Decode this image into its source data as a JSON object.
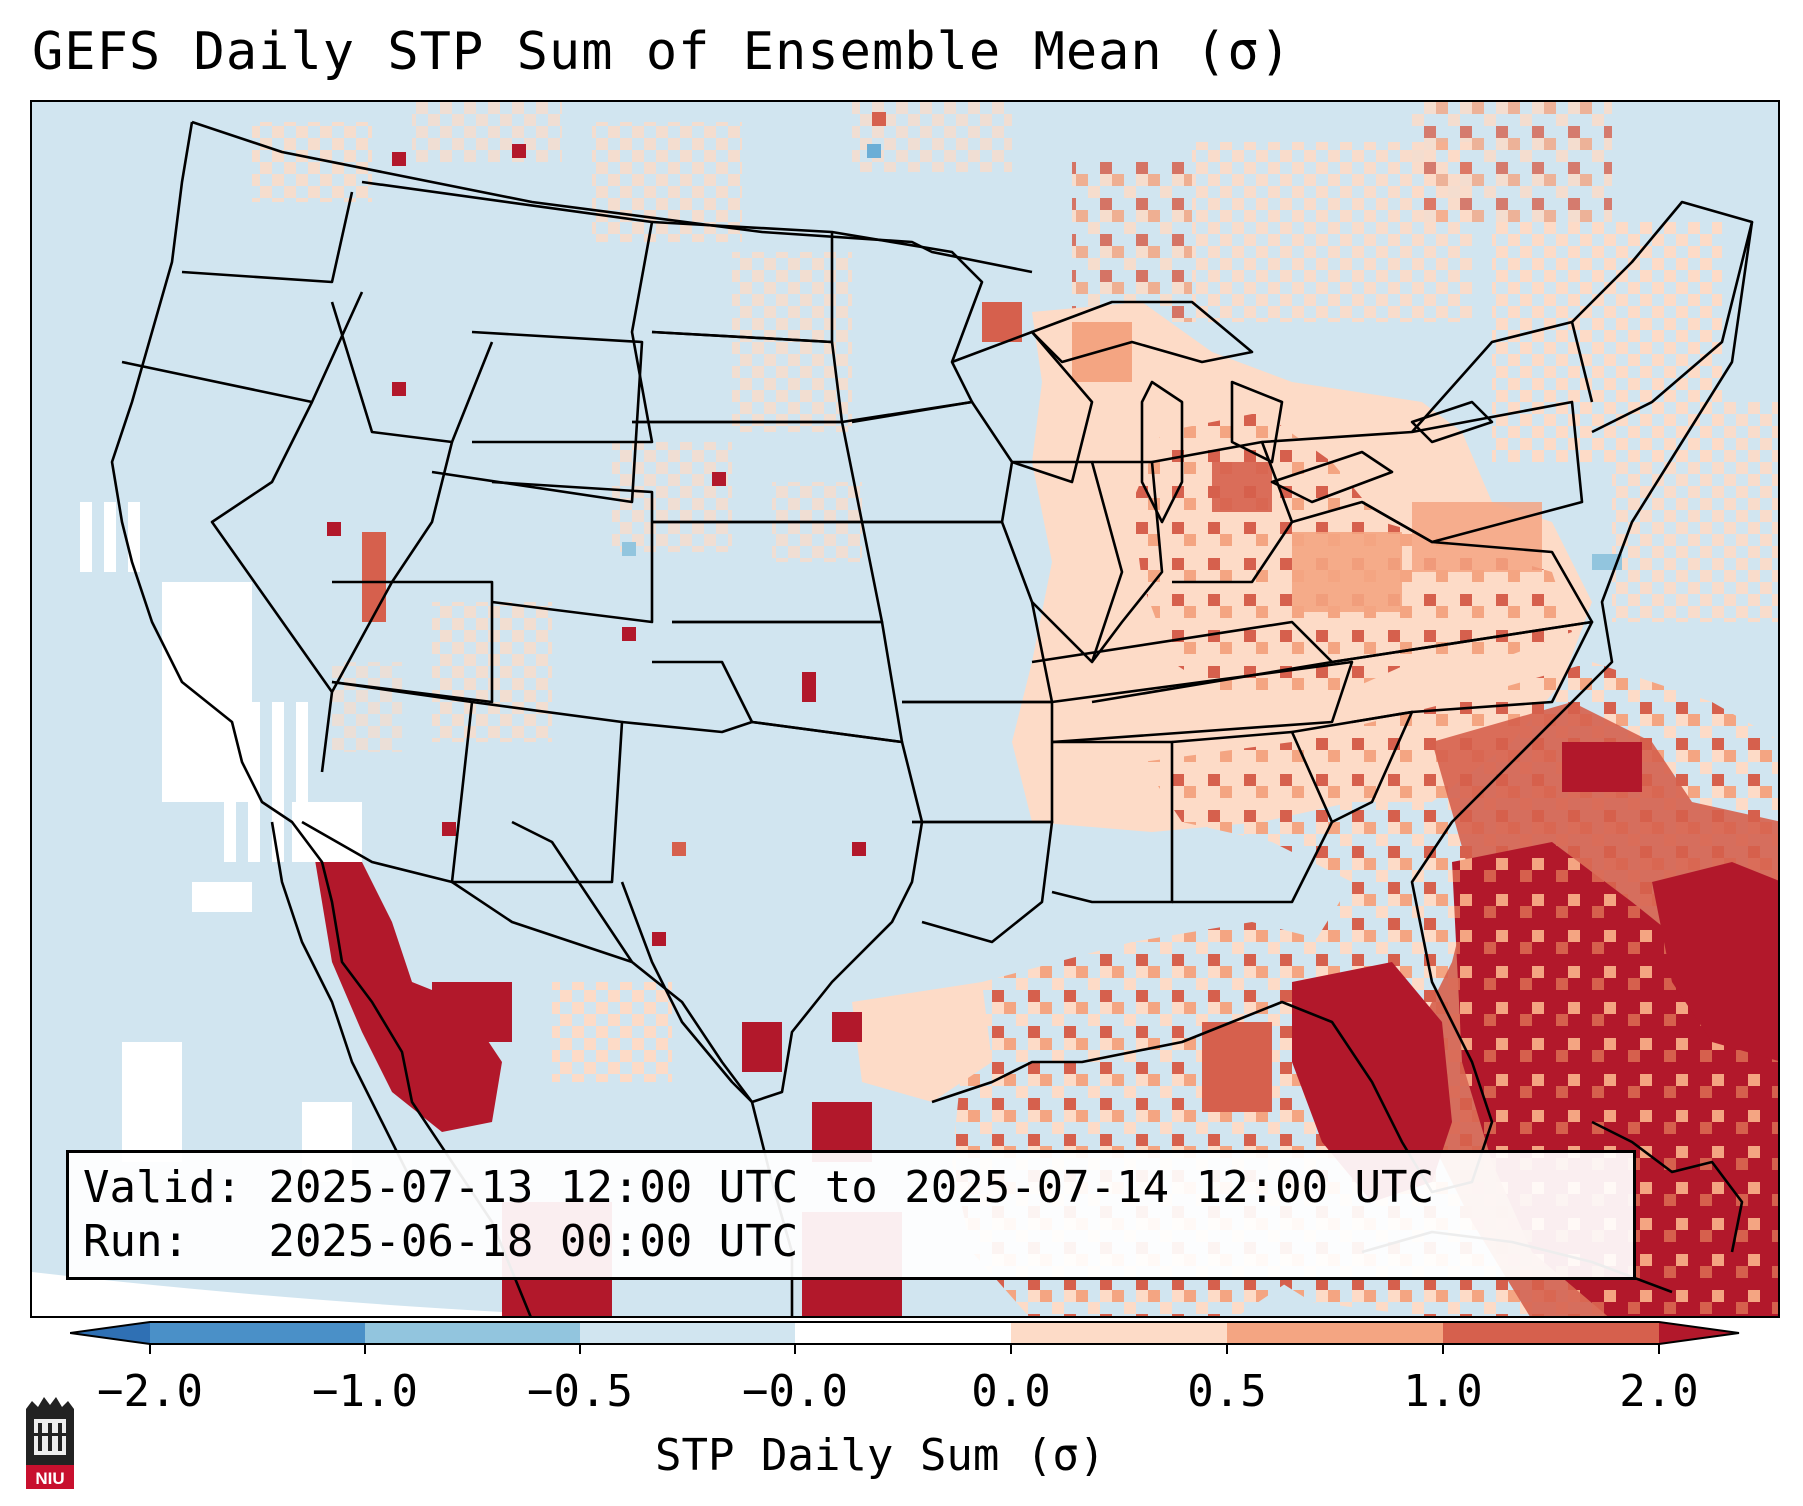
{
  "title": "GEFS Daily STP Sum of Ensemble Mean (σ)",
  "info": {
    "valid_label": "Valid:",
    "valid_value": "2025-07-13 12:00 UTC to 2025-07-14 12:00 UTC",
    "run_label": "Run:",
    "run_value": "2025-06-18 00:00 UTC"
  },
  "colorbar": {
    "label": "STP Daily Sum (σ)",
    "ticks": [
      "−2.0",
      "−1.0",
      "−0.5",
      "−0.0",
      "0.0",
      "0.5",
      "1.0",
      "2.0"
    ],
    "bins": [
      {
        "range": "< -2.0",
        "color": "#2f70b4"
      },
      {
        "range": "-2.0 to -1.0",
        "color": "#4a90c8"
      },
      {
        "range": "-1.0 to -0.5",
        "color": "#92c5de"
      },
      {
        "range": "-0.5 to -0.0",
        "color": "#d1e5f0"
      },
      {
        "range": "-0.0 to 0.0",
        "color": "#ffffff"
      },
      {
        "range": "0.0 to 0.5",
        "color": "#fddbc7"
      },
      {
        "range": "0.5 to 1.0",
        "color": "#f4a582"
      },
      {
        "range": "1.0 to 2.0",
        "color": "#d6604d"
      },
      {
        "range": "> 2.0",
        "color": "#b2182b"
      }
    ]
  },
  "map": {
    "background_color": "#d1e5f0",
    "region": "Contiguous United States, southern Canada, northern Mexico, Gulf of Mexico and western Atlantic",
    "features": [
      {
        "area": "Southeast US coast, Florida and western Atlantic",
        "level": "> 2.0"
      },
      {
        "area": "Great Lakes, Ohio Valley and Mid-Atlantic",
        "level": "0.0 to 1.0"
      },
      {
        "area": "Gulf Coast and northern Gulf of Mexico",
        "level": "0.0 to 2.0"
      },
      {
        "area": "Northwestern Mexico / Gulf of California",
        "level": "> 2.0"
      },
      {
        "area": "Pacific coast offshore",
        "level": "-0.0 to 0.0"
      }
    ]
  },
  "logo": {
    "text": "NIU"
  }
}
